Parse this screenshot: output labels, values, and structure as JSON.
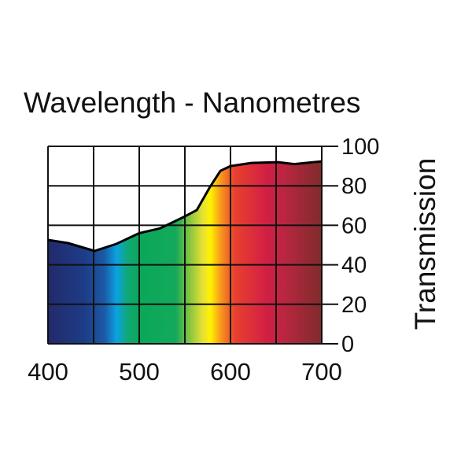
{
  "chart_data": {
    "type": "area",
    "title": "Wavelength - Nanometres",
    "xlabel": "Wavelength - Nanometres",
    "ylabel": "Transmission",
    "xlim": [
      400,
      700
    ],
    "ylim": [
      0,
      100
    ],
    "x_ticks": [
      "400",
      "500",
      "600",
      "700"
    ],
    "y_ticks": [
      "0",
      "20",
      "40",
      "60",
      "80",
      "100"
    ],
    "grid": true,
    "series": [
      {
        "name": "Transmission",
        "x": [
          400,
          422,
          451,
          475,
          500,
          523,
          550,
          563,
          577,
          589,
          600,
          623,
          652,
          670,
          700
        ],
        "y": [
          52.6,
          51,
          47,
          50.6,
          56,
          58.5,
          64.5,
          67.7,
          79,
          87.6,
          90,
          91.6,
          92,
          91,
          92.4
        ]
      }
    ],
    "spectrum_colors": [
      {
        "nm": 400,
        "color": "#222a6a"
      },
      {
        "nm": 440,
        "color": "#1d3c88"
      },
      {
        "nm": 462,
        "color": "#1b5aa6"
      },
      {
        "nm": 475,
        "color": "#0aa2e2"
      },
      {
        "nm": 487,
        "color": "#10a878"
      },
      {
        "nm": 500,
        "color": "#0aa85a"
      },
      {
        "nm": 540,
        "color": "#14a95a"
      },
      {
        "nm": 556,
        "color": "#8cc63f"
      },
      {
        "nm": 570,
        "color": "#e7e234"
      },
      {
        "nm": 578,
        "color": "#fff200"
      },
      {
        "nm": 590,
        "color": "#f7941d"
      },
      {
        "nm": 605,
        "color": "#e8402e"
      },
      {
        "nm": 640,
        "color": "#d11f45"
      },
      {
        "nm": 660,
        "color": "#b8263f"
      },
      {
        "nm": 700,
        "color": "#7e2c2c"
      }
    ]
  }
}
